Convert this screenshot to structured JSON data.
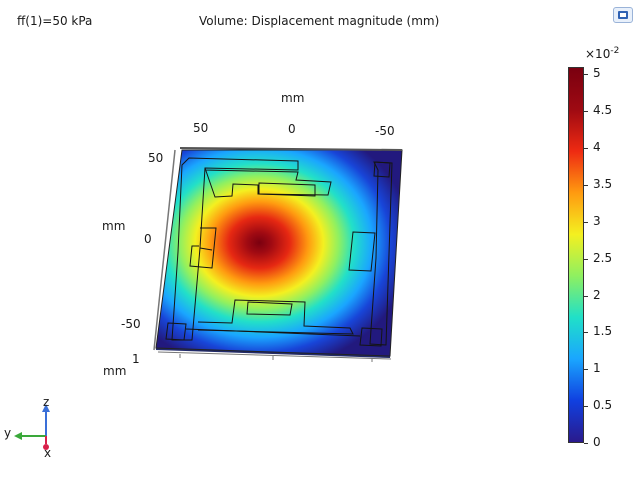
{
  "header": {
    "parameter": "ff(1)=50 kPa",
    "title": "Volume: Displacement magnitude (mm)"
  },
  "axes": {
    "top_unit": "mm",
    "top_ticks": [
      "50",
      "0",
      "-50"
    ],
    "side_unit": "mm",
    "side_ticks": [
      "50",
      "0",
      "-50"
    ],
    "bottom_unit": "mm",
    "bottom_tick": "1"
  },
  "triad": {
    "z": "z",
    "y": "y",
    "x": "x"
  },
  "colorbar": {
    "exponent_base": "×10",
    "exponent_power": "-2",
    "ticks": [
      "5",
      "4.5",
      "4",
      "3.5",
      "3",
      "2.5",
      "2",
      "1.5",
      "1",
      "0.5",
      "0"
    ],
    "tick_values": [
      5,
      4.5,
      4,
      3.5,
      3,
      2.5,
      2,
      1.5,
      1,
      0.5,
      0
    ],
    "min": 0,
    "max": 5.1,
    "colors": [
      "#2a1a8c",
      "#1040e0",
      "#1aa6ff",
      "#20e0c8",
      "#8ff060",
      "#f4f020",
      "#ff9a10",
      "#ee2a12",
      "#9e0a12",
      "#7a0010"
    ]
  },
  "toolbar": {
    "icon": "graphics-toolbar-icon"
  }
}
